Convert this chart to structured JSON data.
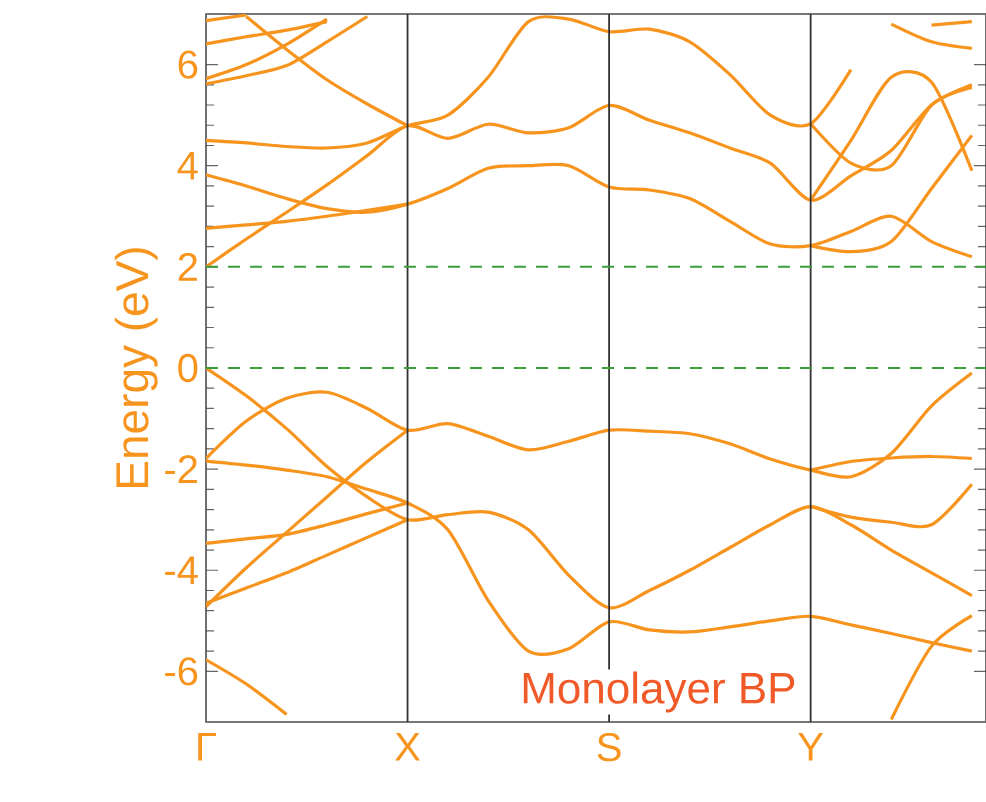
{
  "chart_data": {
    "type": "line",
    "ylabel": "Energy (eV)",
    "annotations": [
      "Monolayer BP"
    ],
    "categories": [
      "Γ",
      null,
      null,
      null,
      null,
      "X",
      null,
      null,
      null,
      null,
      "S",
      null,
      null,
      null,
      null,
      "Y",
      null,
      null,
      null,
      null
    ],
    "ylim": [
      -7,
      7
    ],
    "yticks": [
      -6,
      -4,
      -2,
      0,
      2,
      4,
      6
    ],
    "ref_lines": [
      {
        "axis": "x",
        "value": "X",
        "color": "#333333"
      },
      {
        "axis": "x",
        "value": "S",
        "color": "#333333"
      },
      {
        "axis": "x",
        "value": "Y",
        "color": "#333333"
      },
      {
        "axis": "y",
        "value": 0,
        "color": "#3a9d3a",
        "line_style": "dashed"
      },
      {
        "axis": "y",
        "value": 2,
        "color": "#3a9d3a",
        "line_style": "dashed"
      }
    ],
    "series": [
      {
        "color": "#f7941d",
        "values": [
          2.0,
          2.55,
          3.08,
          3.62,
          4.2,
          4.79,
          4.54,
          4.82,
          4.65,
          4.75,
          5.19,
          4.9,
          4.65,
          4.35,
          4.05,
          3.32,
          3.8,
          4.3,
          5.2,
          5.6
        ]
      },
      {
        "color": "#f7941d",
        "values": [
          4.5,
          4.45,
          4.38,
          4.35,
          4.45,
          4.79,
          5.0,
          5.75,
          6.85,
          6.9,
          6.65,
          6.7,
          6.45,
          5.8,
          5.0,
          4.83,
          5.9,
          null,
          null,
          null
        ]
      },
      {
        "color": "#f7941d",
        "values": [
          3.82,
          3.6,
          3.35,
          3.15,
          3.08,
          3.24,
          3.55,
          3.95,
          4.0,
          4.0,
          3.58,
          3.52,
          3.35,
          2.9,
          2.45,
          2.42,
          2.7,
          3.0,
          2.5,
          2.2
        ]
      },
      {
        "color": "#f7941d",
        "values": [
          2.76,
          2.83,
          2.9,
          3.0,
          3.12,
          3.24,
          null,
          null,
          null,
          null,
          null,
          null,
          null,
          null,
          null,
          2.42,
          2.3,
          2.5,
          3.55,
          4.6
        ]
      },
      {
        "color": "#f7941d",
        "values": [
          5.62,
          5.78,
          5.98,
          6.45,
          6.95,
          null,
          null,
          null,
          null,
          null,
          null,
          null,
          null,
          null,
          null,
          3.32,
          4.5,
          5.75,
          5.65,
          3.9
        ]
      },
      {
        "color": "#f7941d",
        "values": [
          null,
          6.95,
          6.3,
          5.7,
          5.22,
          4.79,
          null,
          null,
          null,
          null,
          null,
          null,
          null,
          null,
          null,
          4.83,
          4.05,
          4.0,
          5.2,
          5.55
        ]
      },
      {
        "color": "#f7941d",
        "values": [
          5.72,
          6.0,
          6.4,
          6.9,
          null,
          null,
          null,
          null,
          null,
          null,
          null,
          null,
          null,
          null,
          null,
          null,
          null,
          6.8,
          6.45,
          6.32
        ]
      },
      {
        "color": "#f7941d",
        "values": [
          6.41,
          6.55,
          6.68,
          6.85,
          null,
          null,
          null,
          null,
          null,
          null,
          null,
          null,
          null,
          null,
          null,
          null,
          null,
          null,
          6.78,
          6.85
        ]
      },
      {
        "color": "#f7941d",
        "values": [
          6.87,
          6.98,
          null,
          null,
          null,
          null,
          null,
          null,
          null,
          null,
          null,
          null,
          null,
          null,
          null,
          null,
          null,
          null,
          null,
          null
        ]
      },
      {
        "color": "#f7941d",
        "values": [
          0,
          -0.55,
          -1.2,
          -1.95,
          -2.55,
          -3.0,
          -2.9,
          -2.85,
          -3.2,
          -4.1,
          -4.74,
          -4.4,
          -4.0,
          -3.55,
          -3.1,
          -2.74,
          -3.1,
          -3.6,
          -4.05,
          -4.5
        ]
      },
      {
        "color": "#f7941d",
        "values": [
          -1.79,
          -1.05,
          -0.6,
          -0.48,
          -0.8,
          -1.23,
          -1.1,
          -1.35,
          -1.62,
          -1.45,
          -1.23,
          -1.25,
          -1.3,
          -1.5,
          -1.8,
          -2.02,
          -2.15,
          -1.69,
          -0.75,
          -0.1
        ]
      },
      {
        "color": "#f7941d",
        "values": [
          -1.84,
          -1.92,
          -2.02,
          -2.15,
          -2.4,
          -2.67,
          -3.2,
          -4.6,
          -5.6,
          -5.55,
          -5.02,
          -5.18,
          -5.22,
          -5.12,
          -5.0,
          -4.91,
          -5.08,
          -5.25,
          -5.43,
          -5.6
        ]
      },
      {
        "color": "#f7941d",
        "values": [
          -3.47,
          -3.38,
          -3.29,
          -3.1,
          -2.88,
          -2.67,
          null,
          null,
          null,
          null,
          null,
          null,
          null,
          null,
          null,
          -2.02,
          -1.85,
          -1.78,
          -1.75,
          -1.79
        ]
      },
      {
        "color": "#f7941d",
        "values": [
          -4.72,
          -3.95,
          -3.25,
          -2.55,
          -1.85,
          -1.23,
          null,
          null,
          null,
          null,
          null,
          null,
          null,
          null,
          null,
          -2.74,
          -2.95,
          -3.05,
          -3.1,
          -2.3
        ]
      },
      {
        "color": "#f7941d",
        "values": [
          -4.65,
          -4.35,
          -4.05,
          -3.7,
          -3.35,
          -3.0,
          null,
          null,
          null,
          null,
          null,
          null,
          null,
          null,
          null,
          null,
          null,
          -6.95,
          -5.5,
          -4.9
        ]
      },
      {
        "color": "#f7941d",
        "values": [
          -5.77,
          -6.25,
          -6.85,
          null,
          null,
          null,
          null,
          null,
          null,
          null,
          null,
          null,
          null,
          null,
          null,
          null,
          null,
          null,
          null,
          null
        ]
      }
    ]
  }
}
